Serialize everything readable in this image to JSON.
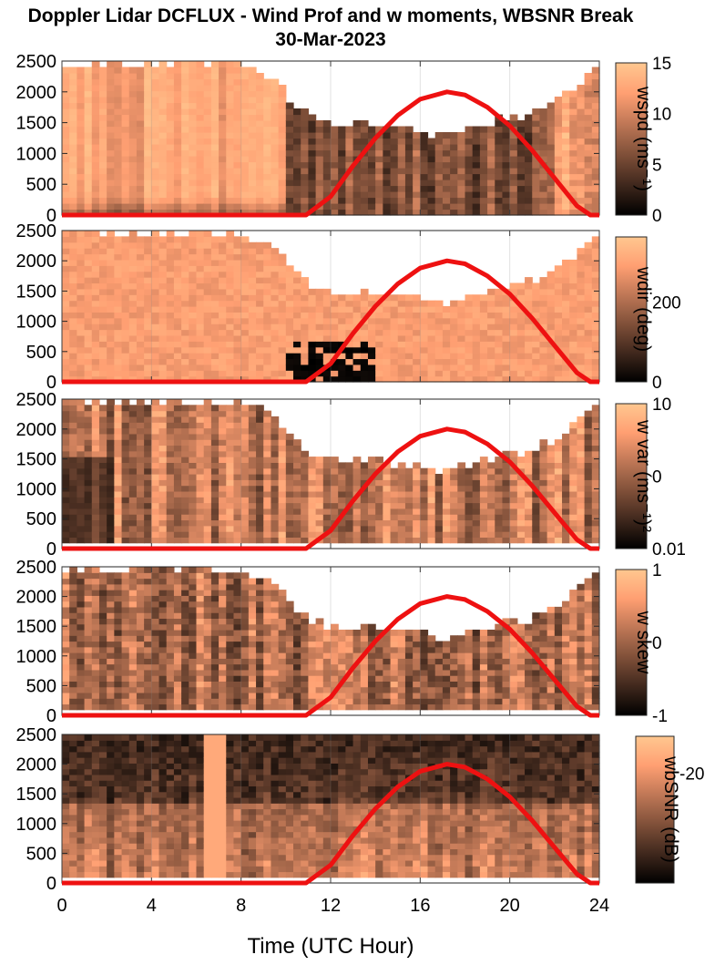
{
  "title": {
    "line1": "Doppler Lidar DCFLUX - Wind Prof and w moments, WBSNR Break",
    "line2": "30-Mar-2023"
  },
  "xlabel": "Time (UTC Hour)",
  "colors": {
    "sun_curve": "#ee1111",
    "colormap_low": "#000000",
    "colormap_high": "#ffc78f"
  },
  "chart_data": [
    {
      "type": "heatmap",
      "name": "wspd",
      "cbar_label": "wspd (ms⁻¹)",
      "cbar_ticks": [
        "15",
        "10",
        "5",
        "0"
      ],
      "clim": [
        0,
        15
      ],
      "ylim": [
        0,
        2500
      ],
      "yticks": [
        "2500",
        "2000",
        "1500",
        "1000",
        "500",
        "0"
      ],
      "xlim": [
        0,
        24
      ],
      "xticks": [
        "0",
        "4",
        "8",
        "12",
        "16",
        "20",
        "24"
      ]
    },
    {
      "type": "heatmap",
      "name": "wdir",
      "cbar_label": "wdir (deg)",
      "cbar_ticks": [
        "200",
        "0"
      ],
      "clim": [
        0,
        360
      ],
      "ylim": [
        0,
        2500
      ],
      "yticks": [
        "2500",
        "2000",
        "1500",
        "1000",
        "500",
        "0"
      ],
      "xlim": [
        0,
        24
      ],
      "xticks": [
        "0",
        "4",
        "8",
        "12",
        "16",
        "20",
        "24"
      ]
    },
    {
      "type": "heatmap",
      "name": "w var",
      "cbar_label": "w var (ms⁻¹)²",
      "cbar_ticks": [
        "10",
        "0",
        "0.01"
      ],
      "clim": [
        0.01,
        10
      ],
      "cscale": "log",
      "ylim": [
        0,
        2500
      ],
      "yticks": [
        "2500",
        "2000",
        "1500",
        "1000",
        "500",
        "0"
      ],
      "xlim": [
        0,
        24
      ],
      "xticks": [
        "0",
        "4",
        "8",
        "12",
        "16",
        "20",
        "24"
      ]
    },
    {
      "type": "heatmap",
      "name": "w skew",
      "cbar_label": "w skew",
      "cbar_ticks": [
        "1",
        "0",
        "-1"
      ],
      "clim": [
        -1,
        1
      ],
      "ylim": [
        0,
        2500
      ],
      "yticks": [
        "2500",
        "2000",
        "1500",
        "1000",
        "500",
        "0"
      ],
      "xlim": [
        0,
        24
      ],
      "xticks": [
        "0",
        "4",
        "8",
        "12",
        "16",
        "20",
        "24"
      ]
    },
    {
      "type": "heatmap",
      "name": "wbSNR",
      "cbar_label": "wbSNR (dB)",
      "cbar_ticks": [
        "-20"
      ],
      "clim": [
        -30,
        -15
      ],
      "ylim": [
        0,
        2500
      ],
      "yticks": [
        "2500",
        "2000",
        "1500",
        "1000",
        "500",
        "0"
      ],
      "xlim": [
        0,
        24
      ],
      "xticks": [
        "0",
        "4",
        "8",
        "12",
        "16",
        "20",
        "24"
      ]
    }
  ],
  "overlay": {
    "type": "line",
    "name": "solar elevation",
    "x": [
      0,
      10.9,
      12,
      13,
      14,
      15,
      16,
      17.2,
      18,
      19,
      20,
      21,
      22,
      23,
      23.6,
      24
    ],
    "y": [
      0,
      0,
      300,
      800,
      1250,
      1620,
      1880,
      2000,
      1950,
      1750,
      1450,
      1050,
      600,
      150,
      0,
      0
    ]
  },
  "cloud_top": {
    "x": [
      0,
      2,
      4,
      6,
      8,
      9.5,
      10.5,
      11.5,
      12.5,
      14,
      16,
      17,
      18,
      19,
      20,
      21,
      22,
      23,
      24
    ],
    "y": [
      2450,
      2450,
      2450,
      2450,
      2450,
      2250,
      1750,
      1550,
      1450,
      1500,
      1380,
      1300,
      1370,
      1500,
      1600,
      1650,
      1850,
      2150,
      2450
    ]
  }
}
